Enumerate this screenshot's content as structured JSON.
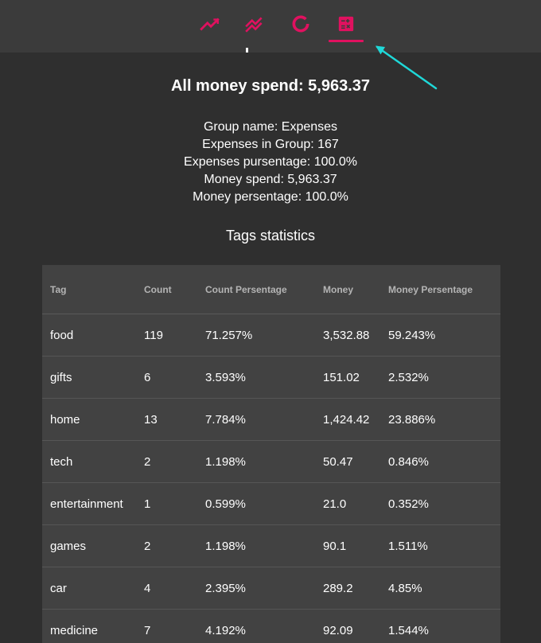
{
  "nav": {
    "tabs": [
      {
        "name": "line-chart-tab",
        "icon": "trending-up-icon"
      },
      {
        "name": "multi-line-chart-tab",
        "icon": "multiline-chart-icon"
      },
      {
        "name": "donut-chart-tab",
        "icon": "donut-chart-icon"
      },
      {
        "name": "statistics-table-tab",
        "icon": "calculator-icon",
        "active": true
      }
    ],
    "accent_color": "#e0115f",
    "annotation_arrow_color": "#1fd8d8"
  },
  "summary": {
    "total": "All money spend: 5,963.37"
  },
  "group": {
    "name": "Group name: Expenses",
    "count": "Expenses in Group: 167",
    "count_percentage": "Expenses pursentage: 100.0%",
    "money": "Money spend: 5,963.37",
    "money_percentage": "Money persentage: 100.0%"
  },
  "tags": {
    "title": "Tags statistics",
    "headers": [
      "Tag",
      "Count",
      "Count Persentage",
      "Money",
      "Money Persentage"
    ],
    "rows": [
      [
        "food",
        "119",
        "71.257%",
        "3,532.88",
        "59.243%"
      ],
      [
        "gifts",
        "6",
        "3.593%",
        "151.02",
        "2.532%"
      ],
      [
        "home",
        "13",
        "7.784%",
        "1,424.42",
        "23.886%"
      ],
      [
        "tech",
        "2",
        "1.198%",
        "50.47",
        "0.846%"
      ],
      [
        "entertainment",
        "1",
        "0.599%",
        "21.0",
        "0.352%"
      ],
      [
        "games",
        "2",
        "1.198%",
        "90.1",
        "1.511%"
      ],
      [
        "car",
        "4",
        "2.395%",
        "289.2",
        "4.85%"
      ],
      [
        "medicine",
        "7",
        "4.192%",
        "92.09",
        "1.544%"
      ]
    ]
  }
}
